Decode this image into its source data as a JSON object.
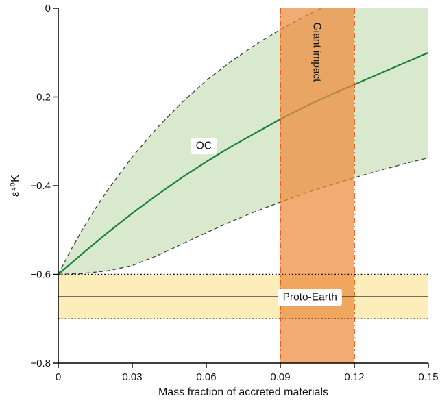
{
  "chart_data": {
    "type": "line",
    "title": "",
    "xlabel": "Mass fraction of accreted materials",
    "ylabel": "ε⁴⁰K",
    "xlim": [
      0,
      0.15
    ],
    "ylim": [
      -0.8,
      0
    ],
    "grid": false,
    "legend": null,
    "axis_color": "#000000",
    "text_color": "#111111",
    "xticks": {
      "values": [
        0,
        0.03,
        0.06,
        0.09,
        0.12,
        0.15
      ],
      "labels": [
        "0",
        "0.03",
        "0.06",
        "0.09",
        "0.12",
        "0.15"
      ]
    },
    "yticks": {
      "values": [
        0,
        -0.2,
        -0.4,
        -0.6,
        -0.8
      ],
      "labels": [
        "0",
        "−0.2",
        "−0.4",
        "−0.6",
        "−0.8"
      ]
    },
    "series": [
      {
        "name": "OC",
        "type": "line",
        "color": "#17803d",
        "width": 2.2,
        "points": [
          [
            0,
            -0.6
          ],
          [
            0.005,
            -0.576
          ],
          [
            0.01,
            -0.552
          ],
          [
            0.015,
            -0.529
          ],
          [
            0.02,
            -0.506
          ],
          [
            0.03,
            -0.462
          ],
          [
            0.04,
            -0.421
          ],
          [
            0.05,
            -0.382
          ],
          [
            0.06,
            -0.346
          ],
          [
            0.07,
            -0.312
          ],
          [
            0.08,
            -0.281
          ],
          [
            0.09,
            -0.25
          ],
          [
            0.1,
            -0.222
          ],
          [
            0.11,
            -0.196
          ],
          [
            0.12,
            -0.172
          ],
          [
            0.13,
            -0.148
          ],
          [
            0.14,
            -0.124
          ],
          [
            0.15,
            -0.1
          ]
        ]
      }
    ],
    "band": {
      "name": "OC uncertainty envelope",
      "fill": "#d9e9cd",
      "edge_color": "#3d3d3d",
      "edge_dash": "6 4",
      "edge_width": 1.3,
      "upper": [
        [
          0,
          -0.6
        ],
        [
          0.005,
          -0.546
        ],
        [
          0.01,
          -0.497
        ],
        [
          0.015,
          -0.452
        ],
        [
          0.02,
          -0.41
        ],
        [
          0.03,
          -0.335
        ],
        [
          0.04,
          -0.27
        ],
        [
          0.05,
          -0.213
        ],
        [
          0.06,
          -0.163
        ],
        [
          0.07,
          -0.12
        ],
        [
          0.08,
          -0.082
        ],
        [
          0.09,
          -0.048
        ],
        [
          0.1,
          -0.018
        ],
        [
          0.11,
          0.009
        ],
        [
          0.12,
          0.033
        ],
        [
          0.13,
          0.055
        ],
        [
          0.14,
          0.075
        ],
        [
          0.15,
          0.093
        ]
      ],
      "lower": [
        [
          0,
          -0.6
        ],
        [
          0.01,
          -0.598
        ],
        [
          0.02,
          -0.592
        ],
        [
          0.03,
          -0.58
        ],
        [
          0.04,
          -0.558
        ],
        [
          0.05,
          -0.532
        ],
        [
          0.06,
          -0.506
        ],
        [
          0.07,
          -0.481
        ],
        [
          0.08,
          -0.458
        ],
        [
          0.09,
          -0.437
        ],
        [
          0.1,
          -0.417
        ],
        [
          0.11,
          -0.399
        ],
        [
          0.12,
          -0.382
        ],
        [
          0.13,
          -0.366
        ],
        [
          0.14,
          -0.351
        ],
        [
          0.15,
          -0.337
        ]
      ]
    },
    "vband": {
      "label": "Giant impact",
      "x0": 0.09,
      "x1": 0.12,
      "fill": "#ed8a3c",
      "fill_opacity": 0.72,
      "edge_color": "#e8530f",
      "edge_dash": "8 4 2 4",
      "edge_width": 1.7
    },
    "hband": {
      "label": "Proto-Earth",
      "y0": -0.7,
      "y1": -0.6,
      "center": -0.65,
      "fill": "#fcedbb",
      "edge_color": "#000000",
      "edge_dash": "1.8 3",
      "edge_width": 1.4,
      "center_color": "#222222",
      "center_width": 1.1
    },
    "annotations": [
      {
        "text": "OC",
        "x": 0.059,
        "y": -0.309,
        "rotation": 0,
        "box": true,
        "font_size": 15.5
      },
      {
        "text": "Giant impact",
        "x": 0.105,
        "y": -0.099,
        "rotation": 90,
        "box": false,
        "font_size": 15.5
      },
      {
        "text": "Proto-Earth",
        "x": 0.102,
        "y": -0.65,
        "rotation": 0,
        "box": true,
        "font_size": 15.5
      }
    ]
  }
}
